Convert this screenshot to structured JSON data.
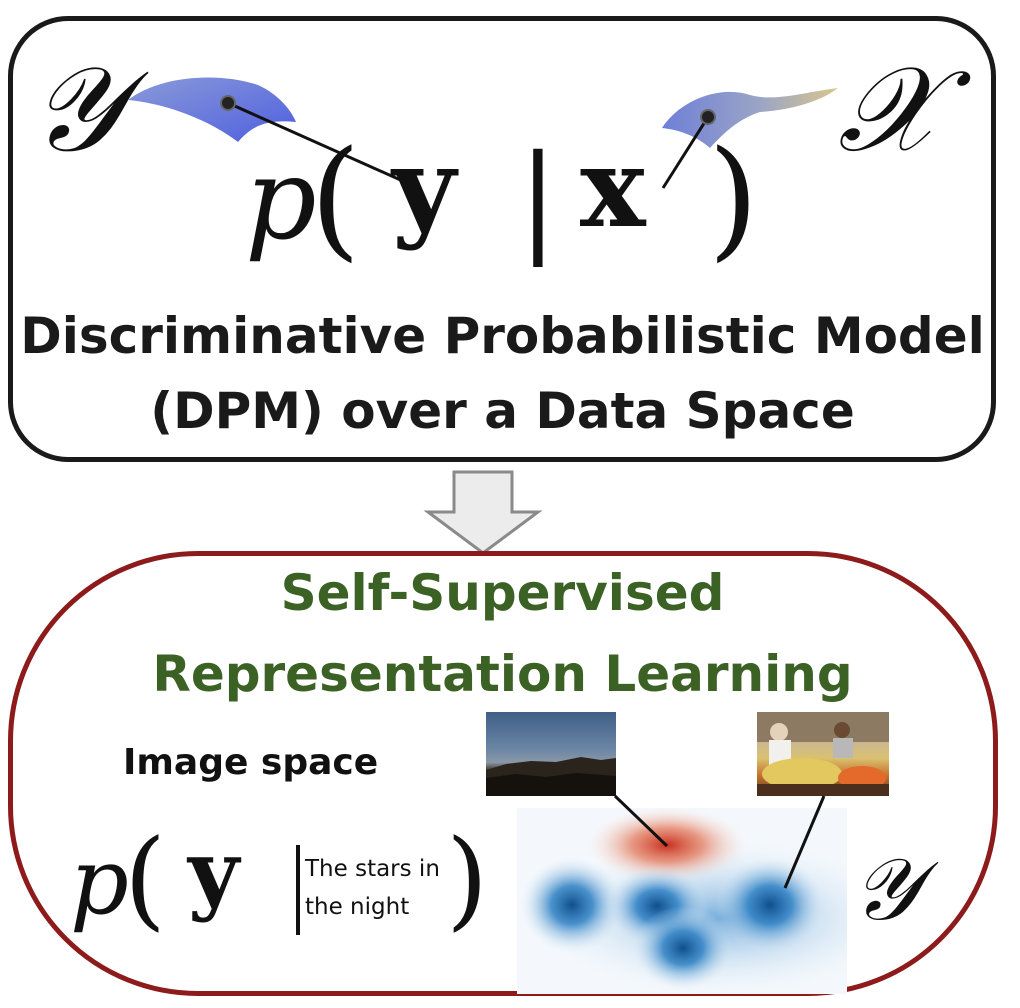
{
  "top_panel": {
    "symbol_y_space": "𝒴",
    "symbol_x_space": "𝒳",
    "formula": {
      "p": "p",
      "open_paren": "(",
      "y": "y",
      "bar": "|",
      "x": "x",
      "close_paren": ")"
    },
    "title_line1": "Discriminative Probabilistic Model",
    "title_line2": "(DPM) over a Data Space",
    "border_color": "#1a1a1a",
    "manifold_color": "#5f74d8"
  },
  "arrow": {
    "color": "#e8e8e8",
    "stroke": "#8a8a8a"
  },
  "bottom_panel": {
    "title_line1": "Self-Supervised",
    "title_line2": "Representation Learning",
    "title_color": "#3b6125",
    "border_color": "#8e1b1b",
    "image_space_label": "Image space",
    "formula": {
      "p": "p",
      "open_paren": "(",
      "y": "y",
      "close_paren": ")"
    },
    "condition_text_line1": "The stars in",
    "condition_text_line2": "the night",
    "symbol_y_space": "𝒴",
    "density_colors": {
      "positive": "#d9583f",
      "negative": "#1f6fb0"
    }
  }
}
